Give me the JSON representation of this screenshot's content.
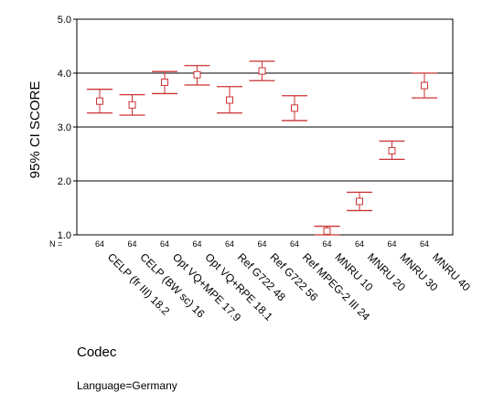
{
  "chart_data": {
    "type": "errorbar",
    "xlabel": "Codec",
    "ylabel": "95% CI SCORE",
    "ylim": [
      1.0,
      5.0
    ],
    "y_ticks": [
      "1.0",
      "2.0",
      "3.0",
      "4.0",
      "5.0"
    ],
    "reference_lines": [
      2.0,
      3.0,
      4.0
    ],
    "n_prefix": "N =",
    "categories": [
      "CELP (fr III) 18.2",
      "CELP (BW sc) 16",
      "Opt VQ+MPE 17.9",
      "Opt VQ+RPE 18.1",
      "Ref G722 48",
      "Ref G722 56",
      "Ref MPEG-2 III 24",
      "MNRU 10",
      "MNRU 20",
      "MNRU 30",
      "MNRU 40"
    ],
    "n": [
      "64",
      "64",
      "64",
      "64",
      "64",
      "64",
      "64",
      "64",
      "64",
      "64",
      "64"
    ],
    "means": [
      3.48,
      3.41,
      3.83,
      3.97,
      3.5,
      4.04,
      3.35,
      1.07,
      1.62,
      2.56,
      3.77
    ],
    "lower": [
      3.26,
      3.22,
      3.62,
      3.78,
      3.26,
      3.86,
      3.12,
      1.0,
      1.45,
      2.4,
      3.54
    ],
    "upper": [
      3.7,
      3.6,
      4.03,
      4.14,
      3.75,
      4.22,
      3.58,
      1.16,
      1.79,
      2.74,
      4.0
    ],
    "marker_color": "#cc3333",
    "line_color": "#000000"
  },
  "footnote": "Language=Germany"
}
